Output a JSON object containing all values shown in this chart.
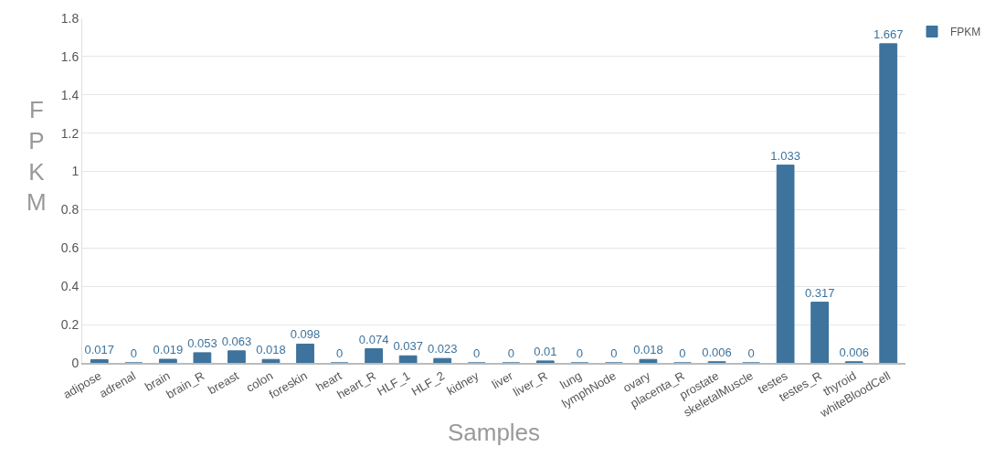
{
  "chart_data": {
    "type": "bar",
    "xlabel": "Samples",
    "ylabel": "FPKM",
    "categories": [
      "adipose",
      "adrenal",
      "brain",
      "brain_R",
      "breast",
      "colon",
      "foreskin",
      "heart",
      "heart_R",
      "HLF_1",
      "HLF_2",
      "kidney",
      "liver",
      "liver_R",
      "lung",
      "lymphNode",
      "ovary",
      "placenta_R",
      "prostate",
      "skeletalMuscle",
      "testes",
      "testes_R",
      "thyroid",
      "whiteBloodCell"
    ],
    "series": [
      {
        "name": "FPKM",
        "color": "#3d739c",
        "values": [
          0.017,
          0,
          0.019,
          0.053,
          0.063,
          0.018,
          0.098,
          0,
          0.074,
          0.037,
          0.023,
          0,
          0,
          0.01,
          0,
          0,
          0.018,
          0,
          0.006,
          0,
          1.033,
          0.317,
          0.006,
          1.667
        ]
      }
    ],
    "ylim": [
      0,
      1.8
    ],
    "yticks": [
      0,
      0.2,
      0.4,
      0.6,
      0.8,
      1,
      1.2,
      1.4,
      1.6,
      1.8
    ],
    "grid": "y",
    "legend": "top right",
    "data_labels": true
  }
}
